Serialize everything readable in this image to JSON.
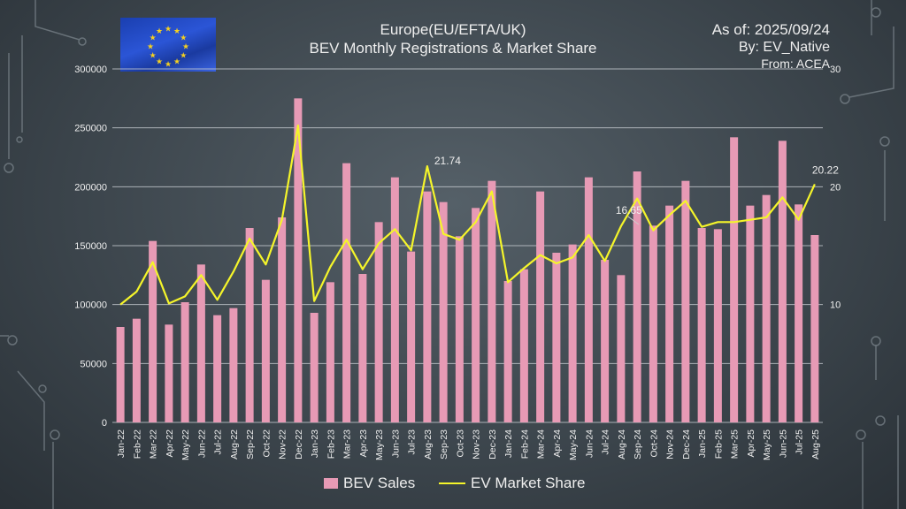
{
  "header": {
    "title_line1": "Europe(EU/EFTA/UK)",
    "title_line2": "BEV Monthly Registrations & Market Share",
    "as_of": "As of: 2025/09/24",
    "by": "By: EV_Native",
    "from": "From: ACEA"
  },
  "colors": {
    "bar": "#e79ab5",
    "line": "#f5f52a",
    "grid": "#c8cdd2"
  },
  "chart_data": {
    "type": "bar+line",
    "title": "Europe(EU/EFTA/UK) BEV Monthly Registrations & Market Share",
    "categories": [
      "Jan-22",
      "Feb-22",
      "Mar-22",
      "Apr-22",
      "May-22",
      "Jun-22",
      "Jul-22",
      "Aug-22",
      "Sep-22",
      "Oct-22",
      "Nov-22",
      "Dec-22",
      "Jan-23",
      "Feb-23",
      "Mar-23",
      "Apr-23",
      "May-23",
      "Jun-23",
      "Jul-23",
      "Aug-23",
      "Sep-23",
      "Oct-23",
      "Nov-23",
      "Dec-23",
      "Jan-24",
      "Feb-24",
      "Mar-24",
      "Apr-24",
      "May-24",
      "Jun-24",
      "Jul-24",
      "Aug-24",
      "Sep-24",
      "Oct-24",
      "Nov-24",
      "Dec-24",
      "Jan-25",
      "Feb-25",
      "Mar-25",
      "Apr-25",
      "May-25",
      "Jun-25",
      "Jul-25",
      "Aug-25"
    ],
    "series": [
      {
        "name": "BEV Sales",
        "type": "bar",
        "axis": "left",
        "values": [
          81000,
          88000,
          154000,
          83000,
          102000,
          134000,
          91000,
          97000,
          165000,
          121000,
          174000,
          275000,
          93000,
          119000,
          220000,
          126000,
          170000,
          208000,
          145000,
          196000,
          187000,
          158000,
          182000,
          205000,
          120000,
          130000,
          196000,
          144000,
          151000,
          208000,
          138000,
          125000,
          213000,
          167000,
          184000,
          205000,
          165000,
          164000,
          242000,
          184000,
          193000,
          239000,
          185000,
          159000
        ]
      },
      {
        "name": "EV Market Share",
        "type": "line",
        "axis": "right",
        "values": [
          10.0,
          11.1,
          13.6,
          10.1,
          10.7,
          12.5,
          10.4,
          12.8,
          15.6,
          13.4,
          17.2,
          25.2,
          10.3,
          13.2,
          15.5,
          13.0,
          15.2,
          16.4,
          14.6,
          21.74,
          16.0,
          15.5,
          17.0,
          19.6,
          11.9,
          13.1,
          14.2,
          13.5,
          14.0,
          15.9,
          13.7,
          16.65,
          19.0,
          16.3,
          17.6,
          18.8,
          16.6,
          17.0,
          17.0,
          17.2,
          17.4,
          19.1,
          17.2,
          20.22
        ]
      }
    ],
    "annotations": [
      {
        "category": "Aug-23",
        "label": "21.74"
      },
      {
        "category": "Aug-24",
        "label": "16.65"
      },
      {
        "category": "Aug-25",
        "label": "20.22"
      }
    ],
    "ylim_left": [
      0,
      300000
    ],
    "yticks_left": [
      "0",
      "50000",
      "100000",
      "150000",
      "200000",
      "250000",
      "300000"
    ],
    "ylim_right": [
      0,
      30
    ],
    "yticks_right": [
      "10",
      "20",
      "30"
    ],
    "grid": true,
    "legend": "bottom"
  }
}
